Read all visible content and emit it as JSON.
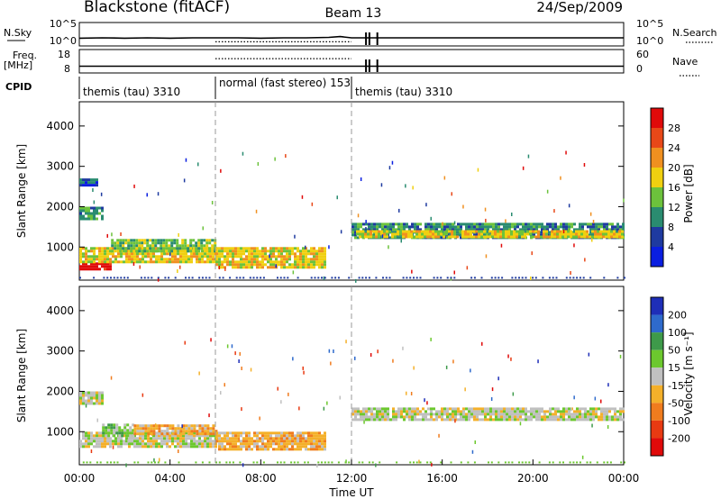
{
  "header": {
    "station": "Blackstone (fitACF)",
    "beam": "Beam 13",
    "date": "24/Sep/2009"
  },
  "chart_data": [
    {
      "type": "line",
      "panel": "nsky",
      "ylabel": "N.Sky",
      "right_label": "N.Search",
      "yticks_left": [
        "10^5",
        "10^0"
      ],
      "yticks_right": [
        "10^5",
        "10^0"
      ],
      "series": [
        {
          "name": "N.Sky",
          "style": "solid",
          "x": [
            0.0,
            1.0,
            2.0,
            3.0,
            4.0,
            5.0,
            6.0,
            7.0,
            8.0,
            9.0,
            10.0,
            11.0,
            11.5,
            12.0,
            12.5,
            13.0,
            14.0,
            16.0,
            18.0,
            20.0,
            22.0,
            24.0
          ],
          "y": [
            1.5,
            1.6,
            1.5,
            1.6,
            1.5,
            1.6,
            1.6,
            1.6,
            1.5,
            1.6,
            1.6,
            1.7,
            1.9,
            1.6,
            1.6,
            1.6,
            1.6,
            1.6,
            1.6,
            1.6,
            1.6,
            1.6
          ]
        },
        {
          "name": "N.Search",
          "style": "dotted",
          "x": [
            6.0,
            8.0,
            10.0,
            12.0
          ],
          "y": [
            0.6,
            0.6,
            0.6,
            0.6
          ]
        }
      ]
    },
    {
      "type": "line",
      "panel": "freq",
      "ylabel": "Freq.",
      "ylabel_unit": "[MHz]",
      "right_label": "Nave",
      "yticks_left": [
        "18",
        "8"
      ],
      "yticks_right": [
        "60",
        "0"
      ],
      "series": [
        {
          "name": "Freq",
          "style": "solid",
          "x": [
            0.0,
            6.0,
            12.0,
            24.0
          ],
          "y": [
            10.5,
            10.5,
            10.5,
            10.5
          ]
        },
        {
          "name": "Nave",
          "style": "dotted",
          "x": [
            6.0,
            12.0
          ],
          "y": [
            38,
            38
          ]
        }
      ]
    },
    {
      "type": "table",
      "panel": "cpid",
      "label": "CPID",
      "segments": [
        {
          "start": 0,
          "end": 6,
          "name": "themis (tau) 3310"
        },
        {
          "start": 6,
          "end": 12,
          "name": "normal (fast stereo) 153"
        },
        {
          "start": 12,
          "end": 24,
          "name": "themis (tau) 3310"
        }
      ]
    },
    {
      "type": "heatmap",
      "panel": "power",
      "ylabel": "Slant Range [km]",
      "ylim": [
        180,
        4600
      ],
      "yticks": [
        "1000",
        "2000",
        "3000",
        "4000"
      ],
      "colorbar_label": "Power [dB]",
      "colorbar_ticks": [
        "4",
        "8",
        "12",
        "16",
        "20",
        "24",
        "28"
      ],
      "colorbar_colors": [
        "#0a1ee0",
        "#1e3aa0",
        "#2a8c70",
        "#6cc23c",
        "#f0d010",
        "#f09020",
        "#e84818",
        "#e00a0a"
      ],
      "regions": [
        {
          "x": [
            0.0,
            1.4
          ],
          "y": [
            440,
            620
          ],
          "level": 7
        },
        {
          "x": [
            0.0,
            6.0
          ],
          "y": [
            600,
            1000
          ],
          "level": 4
        },
        {
          "x": [
            1.4,
            6.0
          ],
          "y": [
            900,
            1200
          ],
          "level": 3
        },
        {
          "x": [
            6.0,
            10.8
          ],
          "y": [
            500,
            1000
          ],
          "level": 4
        },
        {
          "x": [
            0.0,
            1.0
          ],
          "y": [
            1700,
            2000
          ],
          "level": 2
        },
        {
          "x": [
            0.0,
            0.8
          ],
          "y": [
            2500,
            2700
          ],
          "level": 1
        },
        {
          "x": [
            12.0,
            24.0
          ],
          "y": [
            1250,
            1600
          ],
          "level": 2
        },
        {
          "x": [
            12.2,
            24.0
          ],
          "y": [
            1280,
            1420
          ],
          "level": 4
        }
      ]
    },
    {
      "type": "heatmap",
      "panel": "velocity",
      "ylabel": "Slant Range [km]",
      "ylim": [
        180,
        4600
      ],
      "yticks": [
        "1000",
        "2000",
        "3000",
        "4000"
      ],
      "xlabel": "Time UT",
      "xticks": [
        "00:00",
        "04:00",
        "08:00",
        "12:00",
        "16:00",
        "20:00",
        "00:00"
      ],
      "colorbar_label": "Velocity [m s⁻¹]",
      "colorbar_ticks": [
        "200",
        "100",
        "50",
        "15",
        "-15",
        "-50",
        "-100",
        "-200"
      ],
      "colorbar_colors": [
        "#1e2eb8",
        "#2e6acc",
        "#3e9a4a",
        "#6cc82e",
        "#c0c0c0",
        "#f4b02a",
        "#f07c1e",
        "#e83a12",
        "#e00a0a"
      ],
      "regions": [
        {
          "x": [
            0.0,
            6.0
          ],
          "y": [
            600,
            1000
          ],
          "level": 4
        },
        {
          "x": [
            1.0,
            2.4
          ],
          "y": [
            900,
            1200
          ],
          "level": 3
        },
        {
          "x": [
            2.4,
            6.0
          ],
          "y": [
            950,
            1180
          ],
          "level": 5
        },
        {
          "x": [
            6.0,
            10.8
          ],
          "y": [
            550,
            1000
          ],
          "level": 5
        },
        {
          "x": [
            0.0,
            1.0
          ],
          "y": [
            1700,
            2000
          ],
          "level": 4
        },
        {
          "x": [
            12.0,
            24.0
          ],
          "y": [
            1300,
            1600
          ],
          "level": 4
        }
      ]
    }
  ]
}
